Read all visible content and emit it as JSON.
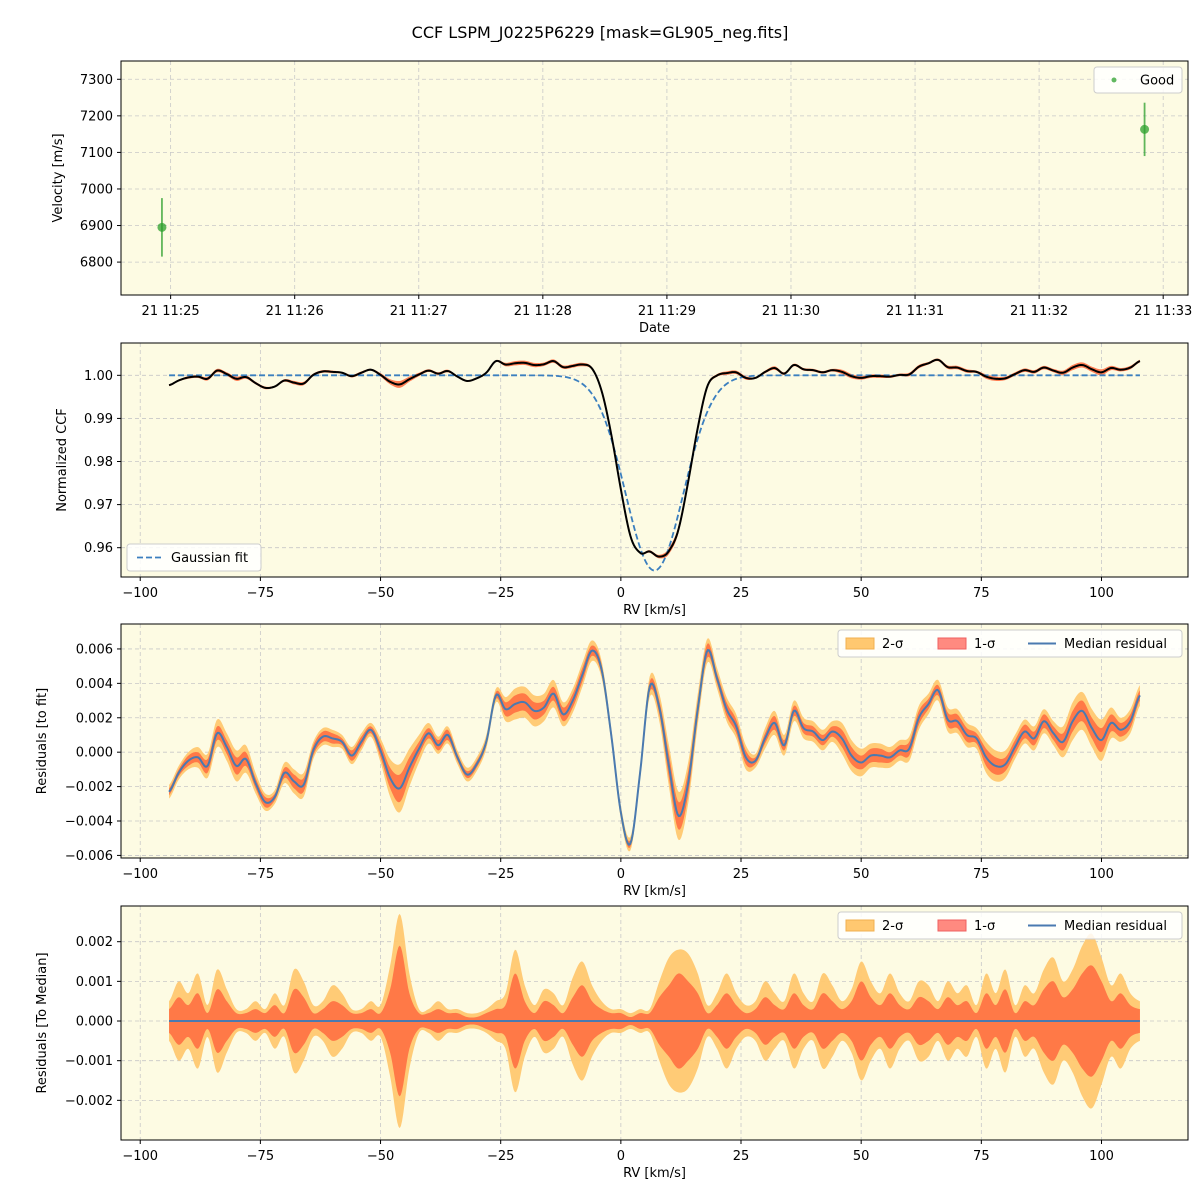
{
  "title": "CCF LSPM_J0225P6229 [mask=GL905_neg.fits]",
  "colors": {
    "panel_bg": "#fdfbe3",
    "good": "#2ca02c",
    "ccf": "#000000",
    "fit": "#3b7fbf",
    "sigma1": "#ff7043",
    "sigma2": "#ffc870",
    "median": "#4a7ab0",
    "grid": "#c8c8c8"
  },
  "chart_data": [
    {
      "id": "velocity",
      "type": "scatter",
      "xlabel": "Date",
      "ylabel": "Velocity [m/s]",
      "x_range_min": [
        24.6,
        33.2
      ],
      "ylim": [
        6710,
        7350
      ],
      "x_ticks": [
        25,
        26,
        27,
        28,
        29,
        30,
        31,
        32,
        33
      ],
      "x_tick_labels": [
        "21 11:25",
        "21 11:26",
        "21 11:27",
        "21 11:28",
        "21 11:29",
        "21 11:30",
        "21 11:31",
        "21 11:32",
        "21 11:33"
      ],
      "y_ticks": [
        6800,
        6900,
        7000,
        7100,
        7200,
        7300
      ],
      "legend": {
        "position": "top-right",
        "entries": [
          "Good"
        ]
      },
      "series": [
        {
          "name": "Good",
          "x": [
            24.93,
            32.85
          ],
          "y": [
            6895,
            7163
          ],
          "yerr": [
            80,
            73
          ]
        }
      ]
    },
    {
      "id": "ccf",
      "type": "line",
      "xlabel": "RV [km/s]",
      "ylabel": "Normalized CCF",
      "xlim": [
        -104,
        118
      ],
      "ylim": [
        0.9532,
        1.0075
      ],
      "x_ticks": [
        -100,
        -75,
        -50,
        -25,
        0,
        25,
        50,
        75,
        100
      ],
      "y_ticks": [
        0.96,
        0.97,
        0.98,
        0.99,
        1.0
      ],
      "y_tick_labels": [
        "0.96",
        "0.97",
        "0.98",
        "0.99",
        "1.00"
      ],
      "legend": {
        "position": "bottom-left",
        "entries": [
          "Gaussian fit"
        ]
      },
      "gaussian_fit": {
        "center": 7.0,
        "depth": 0.0453,
        "sigma": 6.0,
        "continuum": 1.0,
        "x_start": -94,
        "x_end": 108
      }
    },
    {
      "id": "residuals-fit",
      "type": "area",
      "xlabel": "RV [km/s]",
      "ylabel": "Residuals [to fit]",
      "xlim": [
        -104,
        118
      ],
      "ylim": [
        -0.00615,
        0.00745
      ],
      "x_ticks": [
        -100,
        -75,
        -50,
        -25,
        0,
        25,
        50,
        75,
        100
      ],
      "y_ticks": [
        -0.006,
        -0.004,
        -0.002,
        0.0,
        0.002,
        0.004,
        0.006
      ],
      "y_tick_labels": [
        "−0.006",
        "−0.004",
        "−0.002",
        "0.000",
        "0.002",
        "0.004",
        "0.006"
      ],
      "legend": {
        "position": "top-right",
        "entries": [
          "2-σ",
          "1-σ",
          "Median residual"
        ]
      },
      "rv": [
        -94,
        -92,
        -90,
        -88,
        -86,
        -84,
        -82,
        -80,
        -78,
        -76,
        -74,
        -72,
        -70,
        -68,
        -66,
        -64,
        -62,
        -60,
        -58,
        -56,
        -54,
        -52,
        -50,
        -48,
        -46,
        -44,
        -42,
        -40,
        -38,
        -36,
        -34,
        -32,
        -30,
        -28,
        -26,
        -24,
        -22,
        -20,
        -18,
        -16,
        -14,
        -12,
        -10,
        -8,
        -6,
        -4,
        -2,
        0,
        2,
        4,
        6,
        8,
        10,
        12,
        14,
        16,
        18,
        20,
        22,
        24,
        26,
        28,
        30,
        32,
        34,
        36,
        38,
        40,
        42,
        44,
        46,
        48,
        50,
        52,
        54,
        56,
        58,
        60,
        62,
        64,
        66,
        68,
        70,
        72,
        74,
        76,
        78,
        80,
        82,
        84,
        86,
        88,
        90,
        92,
        94,
        96,
        98,
        100,
        102,
        104,
        106,
        108
      ],
      "median": [
        -0.0023,
        -0.0012,
        -0.0005,
        -0.0003,
        -0.0008,
        0.0011,
        0.0003,
        -0.0008,
        -0.0004,
        -0.0018,
        -0.0029,
        -0.0026,
        -0.0012,
        -0.0017,
        -0.0019,
        0.0001,
        0.0009,
        0.0008,
        0.0006,
        -0.0002,
        0.0006,
        0.0013,
        0.0001,
        -0.0015,
        -0.0021,
        -0.0009,
        0.0002,
        0.0011,
        0.0004,
        0.001,
        -0.0003,
        -0.0013,
        -0.0007,
        0.0006,
        0.0033,
        0.0025,
        0.0028,
        0.0029,
        0.0024,
        0.0026,
        0.0034,
        0.0022,
        0.003,
        0.0045,
        0.0059,
        0.0048,
        0.001,
        -0.0035,
        -0.0053,
        -0.0012,
        0.0038,
        0.0026,
        -0.0008,
        -0.0037,
        -0.0018,
        0.0025,
        0.0059,
        0.0043,
        0.0025,
        0.0015,
        -0.0003,
        -0.0005,
        0.0008,
        0.0017,
        0.0004,
        0.0024,
        0.0014,
        0.0012,
        0.0007,
        0.0012,
        0.0008,
        -0.0002,
        -0.0006,
        -0.0002,
        -0.0002,
        -0.0003,
        0.0001,
        0.0002,
        0.002,
        0.0028,
        0.0036,
        0.0019,
        0.0018,
        0.001,
        0.0008,
        -0.0003,
        -0.0008,
        -0.0007,
        0.0003,
        0.0012,
        0.0008,
        0.0018,
        0.0011,
        0.0006,
        0.0018,
        0.0024,
        0.0014,
        0.0007,
        0.0017,
        0.0013,
        0.0018,
        0.0033
      ],
      "sigma1": [
        0.0002,
        0.0002,
        0.0003,
        0.0003,
        0.0004,
        0.0004,
        0.0004,
        0.0005,
        0.0004,
        0.0003,
        0.0003,
        0.0002,
        0.0003,
        0.0004,
        0.0004,
        0.0003,
        0.0003,
        0.0003,
        0.0002,
        0.0003,
        0.0003,
        0.0002,
        0.0004,
        0.0006,
        0.0008,
        0.0006,
        0.0004,
        0.0003,
        0.0003,
        0.0003,
        0.0002,
        0.0002,
        0.0002,
        0.0002,
        0.0002,
        0.0004,
        0.0005,
        0.0005,
        0.0005,
        0.0004,
        0.0004,
        0.0004,
        0.0004,
        0.0004,
        0.0003,
        0.0003,
        0.0002,
        0.0002,
        0.0002,
        0.0002,
        0.0003,
        0.0004,
        0.0007,
        0.0008,
        0.0007,
        0.0005,
        0.0004,
        0.0003,
        0.0004,
        0.0004,
        0.0004,
        0.0002,
        0.0003,
        0.0004,
        0.0003,
        0.0003,
        0.0003,
        0.0003,
        0.0003,
        0.0003,
        0.0005,
        0.0005,
        0.0004,
        0.0004,
        0.0004,
        0.0003,
        0.0003,
        0.0004,
        0.0004,
        0.0003,
        0.0003,
        0.0004,
        0.0004,
        0.0004,
        0.0003,
        0.0005,
        0.0005,
        0.0004,
        0.0004,
        0.0004,
        0.0004,
        0.0004,
        0.0004,
        0.0005,
        0.0006,
        0.0006,
        0.0006,
        0.0007,
        0.0005,
        0.0004,
        0.0004,
        0.0003
      ],
      "sigma2": [
        0.0004,
        0.0004,
        0.0005,
        0.0006,
        0.0007,
        0.0008,
        0.0008,
        0.0009,
        0.0008,
        0.0006,
        0.0005,
        0.0004,
        0.0006,
        0.0007,
        0.0007,
        0.0005,
        0.0005,
        0.0005,
        0.0004,
        0.0005,
        0.0005,
        0.0004,
        0.0007,
        0.0011,
        0.0014,
        0.0011,
        0.0008,
        0.0006,
        0.0005,
        0.0005,
        0.0004,
        0.0004,
        0.0004,
        0.0004,
        0.0004,
        0.0007,
        0.0009,
        0.0009,
        0.0009,
        0.0008,
        0.0008,
        0.0007,
        0.0007,
        0.0007,
        0.0006,
        0.0005,
        0.0004,
        0.0004,
        0.0004,
        0.0004,
        0.0006,
        0.0008,
        0.0012,
        0.0014,
        0.0012,
        0.0009,
        0.0007,
        0.0006,
        0.0007,
        0.0007,
        0.0007,
        0.0004,
        0.0006,
        0.0007,
        0.0006,
        0.0006,
        0.0006,
        0.0006,
        0.0006,
        0.0006,
        0.0009,
        0.0009,
        0.0008,
        0.0007,
        0.0007,
        0.0006,
        0.0006,
        0.0007,
        0.0007,
        0.0006,
        0.0006,
        0.0007,
        0.0007,
        0.0007,
        0.0006,
        0.0009,
        0.0009,
        0.0008,
        0.0007,
        0.0007,
        0.0007,
        0.0007,
        0.0007,
        0.0009,
        0.0011,
        0.0011,
        0.0011,
        0.0012,
        0.0009,
        0.0007,
        0.0007,
        0.0006
      ]
    },
    {
      "id": "residuals-median",
      "type": "area",
      "xlabel": "RV [km/s]",
      "ylabel": "Residuals [To Median]",
      "xlim": [
        -104,
        118
      ],
      "ylim": [
        -0.003,
        0.0029
      ],
      "x_ticks": [
        -100,
        -75,
        -50,
        -25,
        0,
        25,
        50,
        75,
        100
      ],
      "y_ticks": [
        -0.002,
        -0.001,
        0.0,
        0.001,
        0.002
      ],
      "y_tick_labels": [
        "−0.002",
        "−0.001",
        "0.000",
        "0.001",
        "0.002"
      ],
      "legend": {
        "position": "top-right",
        "entries": [
          "2-σ",
          "1-σ",
          "Median residual"
        ]
      },
      "rv": [
        -94,
        -92,
        -90,
        -88,
        -86,
        -84,
        -82,
        -80,
        -78,
        -76,
        -74,
        -72,
        -70,
        -68,
        -66,
        -64,
        -62,
        -60,
        -58,
        -56,
        -54,
        -52,
        -50,
        -48,
        -46,
        -44,
        -42,
        -40,
        -38,
        -36,
        -34,
        -32,
        -30,
        -28,
        -26,
        -24,
        -22,
        -20,
        -18,
        -16,
        -14,
        -12,
        -10,
        -8,
        -6,
        -4,
        -2,
        0,
        2,
        4,
        6,
        8,
        10,
        12,
        14,
        16,
        18,
        20,
        22,
        24,
        26,
        28,
        30,
        32,
        34,
        36,
        38,
        40,
        42,
        44,
        46,
        48,
        50,
        52,
        54,
        56,
        58,
        60,
        62,
        64,
        66,
        68,
        70,
        72,
        74,
        76,
        78,
        80,
        82,
        84,
        86,
        88,
        90,
        92,
        94,
        96,
        98,
        100,
        102,
        104,
        106,
        108
      ],
      "sigma1": [
        0.0003,
        0.0006,
        0.0004,
        0.0007,
        0.0002,
        0.0008,
        0.0005,
        0.0002,
        0.0002,
        0.0003,
        0.0002,
        0.0004,
        0.0002,
        0.0008,
        0.0006,
        0.0002,
        0.0003,
        0.0005,
        0.0004,
        0.0002,
        0.0002,
        0.0003,
        0.0002,
        0.0008,
        0.0019,
        0.0007,
        0.0002,
        0.0002,
        0.0003,
        0.0002,
        0.0002,
        0.0001,
        0.0001,
        0.0002,
        0.0003,
        0.0004,
        0.0012,
        0.0005,
        0.0002,
        0.0005,
        0.0004,
        0.0002,
        0.0006,
        0.0009,
        0.0005,
        0.0003,
        0.0002,
        0.0002,
        0.0001,
        0.0002,
        0.0002,
        0.0006,
        0.0009,
        0.0012,
        0.001,
        0.0007,
        0.0002,
        0.0004,
        0.0007,
        0.0004,
        0.0002,
        0.0003,
        0.0006,
        0.0004,
        0.0003,
        0.0007,
        0.0004,
        0.0003,
        0.0007,
        0.0005,
        0.0003,
        0.0005,
        0.001,
        0.0006,
        0.0004,
        0.0007,
        0.0004,
        0.0003,
        0.0006,
        0.0005,
        0.0003,
        0.0006,
        0.0004,
        0.0005,
        0.0002,
        0.0007,
        0.0004,
        0.0008,
        0.0002,
        0.0005,
        0.0004,
        0.0008,
        0.001,
        0.0006,
        0.0008,
        0.0012,
        0.0014,
        0.001,
        0.0005,
        0.0007,
        0.0004,
        0.0003
      ],
      "sigma2": [
        0.0005,
        0.001,
        0.0007,
        0.0012,
        0.0004,
        0.0013,
        0.0008,
        0.0003,
        0.0003,
        0.0005,
        0.0003,
        0.0007,
        0.0004,
        0.0013,
        0.001,
        0.0004,
        0.0005,
        0.0009,
        0.0007,
        0.0003,
        0.0003,
        0.0005,
        0.0004,
        0.0014,
        0.0027,
        0.0012,
        0.0003,
        0.0003,
        0.0005,
        0.0003,
        0.0003,
        0.0002,
        0.0002,
        0.0003,
        0.0005,
        0.0007,
        0.0018,
        0.0009,
        0.0004,
        0.0008,
        0.0007,
        0.0004,
        0.0011,
        0.0015,
        0.0009,
        0.0005,
        0.0003,
        0.0003,
        0.0002,
        0.0003,
        0.0003,
        0.001,
        0.0016,
        0.0018,
        0.0017,
        0.0012,
        0.0004,
        0.0007,
        0.0012,
        0.0007,
        0.0004,
        0.0005,
        0.001,
        0.0007,
        0.0005,
        0.0012,
        0.0007,
        0.0005,
        0.0012,
        0.0009,
        0.0005,
        0.0008,
        0.0015,
        0.001,
        0.0007,
        0.0012,
        0.0007,
        0.0005,
        0.001,
        0.0009,
        0.0005,
        0.001,
        0.0007,
        0.0009,
        0.0004,
        0.0012,
        0.0007,
        0.0013,
        0.0004,
        0.0009,
        0.0007,
        0.0013,
        0.0016,
        0.001,
        0.0013,
        0.0019,
        0.0022,
        0.0016,
        0.0009,
        0.0012,
        0.0007,
        0.0005
      ]
    }
  ]
}
